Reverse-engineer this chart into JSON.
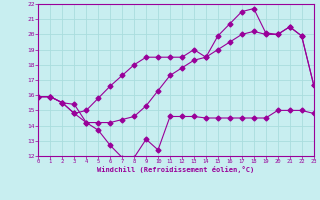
{
  "xlabel": "Windchill (Refroidissement éolien,°C)",
  "bg_color": "#c8eef0",
  "grid_color": "#aadddd",
  "line_color": "#990099",
  "hours": [
    0,
    1,
    2,
    3,
    4,
    5,
    6,
    7,
    8,
    9,
    10,
    11,
    12,
    13,
    14,
    15,
    16,
    17,
    18,
    19,
    20,
    21,
    22,
    23
  ],
  "line1": [
    15.9,
    15.9,
    15.5,
    15.4,
    14.2,
    13.7,
    12.7,
    11.9,
    11.9,
    13.1,
    12.4,
    14.6,
    14.6,
    14.6,
    14.5,
    14.5,
    14.5,
    14.5,
    14.5,
    14.5,
    15.0,
    15.0,
    15.0,
    14.8
  ],
  "line2": [
    15.9,
    15.9,
    15.5,
    14.8,
    14.2,
    14.2,
    14.2,
    14.4,
    14.6,
    15.3,
    16.3,
    17.3,
    17.8,
    18.3,
    18.5,
    19.0,
    19.5,
    20.0,
    20.2,
    20.0,
    20.0,
    20.5,
    19.9,
    16.7
  ],
  "line3": [
    15.9,
    15.9,
    15.5,
    14.8,
    15.0,
    15.8,
    16.6,
    17.3,
    18.0,
    18.5,
    18.5,
    18.5,
    18.5,
    19.0,
    18.5,
    19.9,
    20.7,
    21.5,
    21.7,
    20.1,
    20.0,
    20.5,
    19.9,
    16.7
  ],
  "ylim": [
    12,
    22
  ],
  "xlim": [
    0,
    23
  ]
}
